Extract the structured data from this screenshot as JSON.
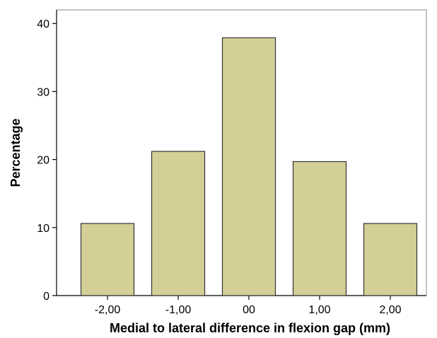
{
  "chart_data": {
    "type": "bar",
    "title": "",
    "xlabel": "Medial to lateral difference in flexion gap (mm)",
    "ylabel": "Percentage",
    "categories": [
      "-2,00",
      "-1,00",
      "00",
      "1,00",
      "2,00"
    ],
    "values": [
      10.6,
      21.2,
      37.9,
      19.7,
      10.6
    ],
    "ylim": [
      0,
      42
    ],
    "yticks": [
      0,
      10,
      20,
      30,
      40
    ],
    "grid": false,
    "legend": "none",
    "colors": {
      "bar_fill": "#d3cf97",
      "bar_stroke": "#333333",
      "plot_frame": "#888888",
      "axis": "#000000"
    }
  }
}
